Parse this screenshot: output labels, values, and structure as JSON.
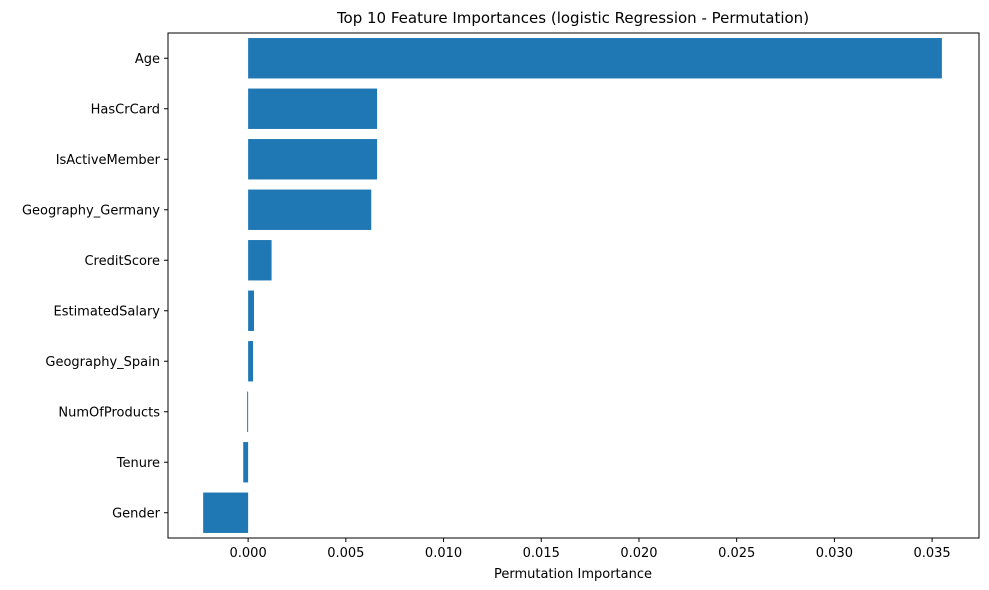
{
  "chart_data": {
    "type": "bar",
    "orientation": "horizontal",
    "title": "Top 10 Feature Importances (logistic Regression - Permutation)",
    "xlabel": "Permutation Importance",
    "ylabel": "",
    "xlim": [
      -0.0041,
      0.0374
    ],
    "xticks": [
      0.0,
      0.005,
      0.01,
      0.015,
      0.02,
      0.025,
      0.03,
      0.035
    ],
    "xtick_labels": [
      "0.000",
      "0.005",
      "0.010",
      "0.015",
      "0.020",
      "0.025",
      "0.030",
      "0.035"
    ],
    "grid": false,
    "bar_color": "#1f77b4",
    "categories": [
      "Age",
      "HasCrCard",
      "IsActiveMember",
      "Geography_Germany",
      "CreditScore",
      "EstimatedSalary",
      "Geography_Spain",
      "NumOfProducts",
      "Tenure",
      "Gender"
    ],
    "values": [
      0.0355,
      0.0066,
      0.0066,
      0.0063,
      0.0012,
      0.0003,
      0.00025,
      -5e-05,
      -0.00025,
      -0.0023
    ]
  }
}
